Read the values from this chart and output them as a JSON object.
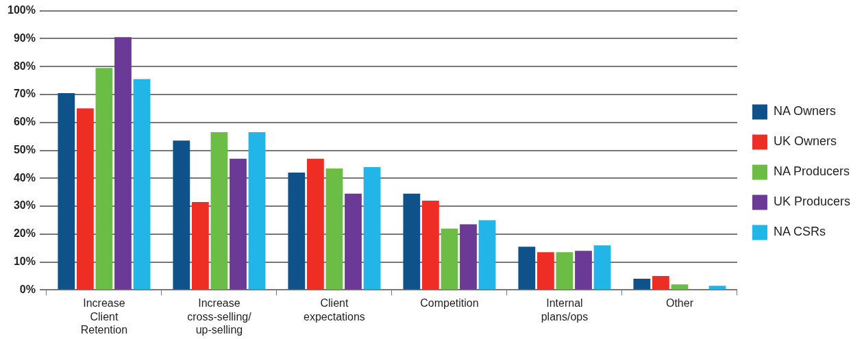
{
  "chart_data": {
    "type": "bar",
    "categories": [
      "Increase\nClient\nRetention",
      "Increase\ncross-selling/\nup-selling",
      "Client\nexpectations",
      "Competition",
      "Internal\nplans/ops",
      "Other"
    ],
    "series": [
      {
        "name": "NA Owners",
        "color": "#0f5289",
        "values": [
          70.5,
          53.5,
          42,
          34.5,
          15.5,
          4
        ]
      },
      {
        "name": "UK Owners",
        "color": "#ee2e24",
        "values": [
          65,
          31.5,
          47,
          32,
          13.5,
          5
        ]
      },
      {
        "name": "NA Producers",
        "color": "#6cbd45",
        "values": [
          79.5,
          56.5,
          43.5,
          22,
          13.5,
          2
        ]
      },
      {
        "name": "UK Producers",
        "color": "#6b3996",
        "values": [
          90.5,
          47,
          34.5,
          23.5,
          14,
          0
        ]
      },
      {
        "name": "NA CSRs",
        "color": "#22b5e8",
        "values": [
          75.5,
          56.5,
          44,
          25,
          16,
          1.5
        ]
      }
    ],
    "ylim": [
      0,
      100
    ],
    "yticks": [
      {
        "value": 0,
        "label": "0%"
      },
      {
        "value": 10,
        "label": "10%"
      },
      {
        "value": 20,
        "label": "20%"
      },
      {
        "value": 30,
        "label": "30%"
      },
      {
        "value": 40,
        "label": "40%"
      },
      {
        "value": 50,
        "label": "50%"
      },
      {
        "value": 60,
        "label": "60%"
      },
      {
        "value": 70,
        "label": "70%"
      },
      {
        "value": 80,
        "label": "80%"
      },
      {
        "value": 90,
        "label": "90%"
      },
      {
        "value": 100,
        "label": "100%"
      }
    ],
    "grid": "y",
    "legend": "right"
  }
}
